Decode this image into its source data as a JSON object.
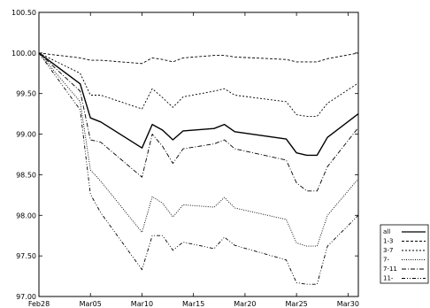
{
  "chart_data": {
    "type": "line",
    "title": "",
    "xlabel": "",
    "ylabel": "",
    "ylim": [
      97.0,
      100.5
    ],
    "xlim": [
      "Feb28",
      "Mar31"
    ],
    "yticks": [
      97.0,
      97.5,
      98.0,
      98.5,
      99.0,
      99.5,
      100.0,
      100.5
    ],
    "ytick_labels": [
      "97.00",
      "97.50",
      "98.00",
      "98.50",
      "99.00",
      "99.50",
      "100.00",
      "100.50"
    ],
    "xticks": [
      0,
      5,
      10,
      15,
      20,
      25,
      30
    ],
    "xtick_labels": [
      "Feb28",
      "Mar05",
      "Mar10",
      "Mar15",
      "Mar20",
      "Mar25",
      "Mar30"
    ],
    "grid": false,
    "legend_position": "outside-bottom-right",
    "x_unit": "days since Feb28",
    "series": [
      {
        "name": "all",
        "dash": "",
        "x": [
          0,
          4,
          5,
          6,
          10,
          11,
          12,
          13,
          14,
          17,
          18,
          19,
          24,
          25,
          26,
          27,
          28,
          31
        ],
        "values": [
          100.0,
          99.62,
          99.2,
          99.15,
          98.83,
          99.12,
          99.05,
          98.93,
          99.04,
          99.07,
          99.12,
          99.03,
          98.94,
          98.77,
          98.74,
          98.74,
          98.96,
          99.25
        ]
      },
      {
        "name": "1-3",
        "dash": "3,2",
        "x": [
          0,
          4,
          5,
          6,
          10,
          11,
          12,
          13,
          14,
          17,
          18,
          19,
          24,
          25,
          26,
          27,
          28,
          31
        ],
        "values": [
          100.0,
          99.94,
          99.91,
          99.91,
          99.87,
          99.94,
          99.92,
          99.89,
          99.94,
          99.97,
          99.97,
          99.95,
          99.92,
          99.89,
          99.89,
          99.89,
          99.93,
          100.0
        ]
      },
      {
        "name": "3-7",
        "dash": "2,2",
        "x": [
          0,
          4,
          5,
          6,
          10,
          11,
          12,
          13,
          14,
          17,
          18,
          19,
          24,
          25,
          26,
          27,
          28,
          31
        ],
        "values": [
          100.0,
          99.75,
          99.48,
          99.48,
          99.31,
          99.56,
          99.45,
          99.33,
          99.46,
          99.53,
          99.56,
          99.48,
          99.4,
          99.24,
          99.22,
          99.22,
          99.38,
          99.63
        ]
      },
      {
        "name": "7-",
        "dash": "1,1.5",
        "x": [
          0,
          4,
          5,
          6,
          10,
          11,
          12,
          13,
          14,
          17,
          18,
          19,
          24,
          25,
          26,
          27,
          28,
          31
        ],
        "values": [
          100.0,
          99.4,
          98.56,
          98.42,
          97.79,
          98.23,
          98.15,
          97.98,
          98.13,
          98.1,
          98.22,
          98.09,
          97.95,
          97.66,
          97.62,
          97.62,
          98.0,
          98.45
        ]
      },
      {
        "name": "7-11",
        "dash": "5,2,1,2",
        "x": [
          0,
          4,
          5,
          6,
          10,
          11,
          12,
          13,
          14,
          17,
          18,
          19,
          24,
          25,
          26,
          27,
          28,
          31
        ],
        "values": [
          100.0,
          99.53,
          98.93,
          98.9,
          98.47,
          99.0,
          98.85,
          98.64,
          98.82,
          98.88,
          98.93,
          98.82,
          98.68,
          98.4,
          98.3,
          98.3,
          98.6,
          99.08
        ]
      },
      {
        "name": "11-",
        "dash": "4,2,1,2,1,2",
        "x": [
          0,
          4,
          5,
          6,
          10,
          11,
          12,
          13,
          14,
          17,
          18,
          19,
          24,
          25,
          26,
          27,
          28,
          31
        ],
        "values": [
          100.0,
          99.3,
          98.26,
          98.03,
          97.33,
          97.75,
          97.75,
          97.57,
          97.67,
          97.59,
          97.73,
          97.63,
          97.45,
          97.17,
          97.15,
          97.15,
          97.62,
          98.0
        ]
      }
    ]
  }
}
